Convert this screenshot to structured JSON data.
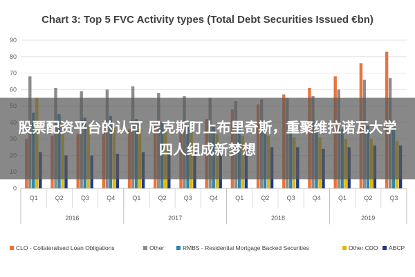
{
  "chart_data": {
    "type": "bar",
    "title": "Chart 3: Top 5 FVC Activity types (Total Debt Securities Issued €bn)",
    "xlabel": "",
    "ylabel": "",
    "ylim": [
      0,
      90
    ],
    "yticks": [
      0,
      10,
      20,
      30,
      40,
      50,
      60,
      70,
      80,
      90
    ],
    "grid": true,
    "legend_position": "bottom",
    "years": [
      {
        "label": "2016",
        "span": 4
      },
      {
        "label": "2017",
        "span": 4
      },
      {
        "label": "2018",
        "span": 4
      },
      {
        "label": "2019",
        "span": 3
      }
    ],
    "categories": [
      "Q1",
      "Q2",
      "Q3",
      "Q4",
      "Q1",
      "Q2",
      "Q3",
      "Q4",
      "Q1",
      "Q2",
      "Q3",
      "Q4",
      "Q1",
      "Q2",
      "Q3"
    ],
    "series": [
      {
        "name": "CLO - Collateralised Loan Obligations",
        "color": "#e8743b",
        "values": [
          30,
          32,
          33,
          34,
          36,
          38,
          40,
          42,
          48,
          51,
          57,
          61,
          68,
          76,
          83
        ]
      },
      {
        "name": "Other",
        "color": "#8c8c8c",
        "values": [
          68,
          61,
          59,
          60,
          62,
          58,
          56,
          55,
          53,
          54,
          55,
          56,
          60,
          66,
          67
        ]
      },
      {
        "name": "RMBS - Residential Mortgage Backed Securities",
        "color": "#2e86ab",
        "values": [
          46,
          45,
          43,
          44,
          42,
          40,
          39,
          38,
          37,
          36,
          36,
          35,
          36,
          38,
          37
        ]
      },
      {
        "name": "Other CDO",
        "color": "#e6b800",
        "values": [
          55,
          40,
          38,
          37,
          36,
          35,
          34,
          33,
          32,
          32,
          31,
          31,
          30,
          30,
          29
        ]
      },
      {
        "name": "ABCP",
        "color": "#1f3a8a",
        "values": [
          22,
          20,
          20,
          21,
          22,
          23,
          23,
          24,
          24,
          25,
          25,
          24,
          25,
          26,
          26
        ]
      }
    ]
  },
  "overlay": {
    "text": "股票配资平台的认可 尼克斯盯上布里奇斯，重聚维拉诺瓦大学四人组成新梦想"
  }
}
